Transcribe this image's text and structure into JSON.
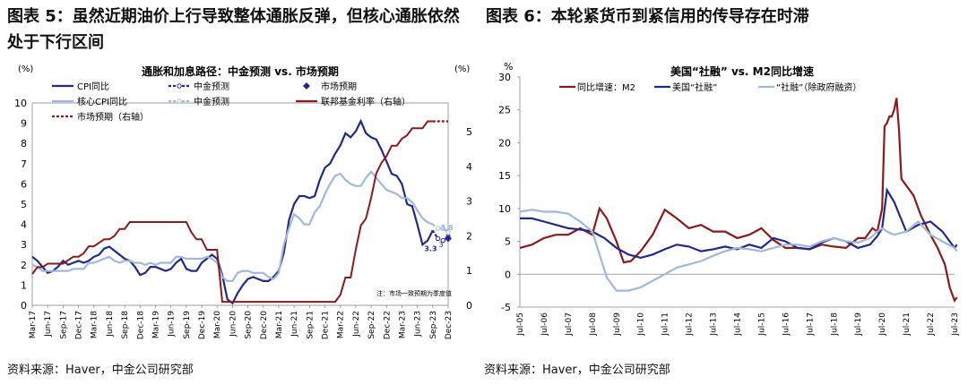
{
  "left": {
    "figure_title": "图表 5：虽然近期油价上行导致整体通胀反弹，但核心通胀依然处于下行区间",
    "source": "资料来源：Haver，中金公司研究部"
  },
  "right": {
    "figure_title": "图表 6：本轮紧货币到紧信用的传导存在时滞",
    "source": "资料来源：Haver，中金公司研究部"
  },
  "chart_data": [
    {
      "type": "line",
      "title": "通胀和加息路径：中金预测 vs. 市场预期",
      "ylabel_left": "(%)",
      "ylabel_right": "(%)",
      "ylim_left": [
        0,
        10
      ],
      "ylim_right": [
        0,
        5.83
      ],
      "x_tick_labels": [
        "Mar-17",
        "Jun-17",
        "Sep-17",
        "Dec-17",
        "Mar-18",
        "Jun-18",
        "Sep-18",
        "Dec-18",
        "Mar-19",
        "Jun-19",
        "Sep-19",
        "Dec-19",
        "Mar-20",
        "Jun-20",
        "Sep-20",
        "Dec-20",
        "Mar-21",
        "Jun-21",
        "Sep-21",
        "Dec-21",
        "Mar-22",
        "Jun-22",
        "Sep-22",
        "Dec-22",
        "Mar-23",
        "Jun-23",
        "Sep-23",
        "Dec-23"
      ],
      "y_ticks_left": [
        0,
        1,
        2,
        3,
        4,
        5,
        6,
        7,
        8,
        9,
        10
      ],
      "y_ticks_right": [
        0,
        1,
        2,
        3,
        4,
        5
      ],
      "note": "注：市场一致预期为季度值",
      "data_labels": [
        {
          "text": "3.8",
          "series": "核心CPI同比 · 中金预测",
          "value": 3.8
        },
        {
          "text": "3.3",
          "series": "CPI同比 · 中金预测",
          "value": 3.3
        },
        {
          "text": "3",
          "series": "核心CPI同比 · 中金预测",
          "value": 3.0
        }
      ],
      "legend": [
        {
          "name": "CPI同比",
          "color": "#1f2a8c",
          "style": "solid"
        },
        {
          "name": "中金预测",
          "color": "#1f2a8c",
          "style": "dashed-marker"
        },
        {
          "name": "市场预期",
          "color": "#1f2a8c",
          "style": "diamond"
        },
        {
          "name": "核心CPI同比",
          "color": "#9fb8dc",
          "style": "solid"
        },
        {
          "name": "中金预测",
          "color": "#9fb8dc",
          "style": "dashed-marker"
        },
        {
          "name": "联邦基金利率（右轴）",
          "color": "#8b1a1a",
          "style": "solid"
        },
        {
          "name": "市场预期（右轴）",
          "color": "#8b1a1a",
          "style": "dashed"
        }
      ],
      "series": [
        {
          "name": "CPI同比",
          "axis": "left",
          "color": "#1f2a8c",
          "x": [
            0,
            1,
            2,
            3,
            4,
            5,
            6,
            7,
            8,
            9,
            10,
            11,
            12,
            13,
            14,
            15,
            16,
            17,
            18,
            19,
            20,
            21,
            22,
            23,
            24,
            25,
            26,
            27,
            28,
            29,
            30,
            31,
            32,
            33,
            34,
            35,
            36,
            37,
            38,
            39,
            40,
            41,
            42,
            43,
            44,
            45,
            46,
            47,
            48,
            49,
            50,
            51,
            52,
            53,
            54,
            55,
            56,
            57,
            58,
            59,
            60,
            61,
            62,
            63,
            64,
            65,
            66,
            67,
            68,
            69,
            70,
            71,
            72,
            73,
            74,
            75,
            76,
            77,
            78
          ],
          "y": [
            2.4,
            2.2,
            1.9,
            1.6,
            1.7,
            1.9,
            2.2,
            2.0,
            2.1,
            2.2,
            2.1,
            2.2,
            2.4,
            2.5,
            2.8,
            2.9,
            2.7,
            2.5,
            2.3,
            2.2,
            1.9,
            1.5,
            1.6,
            1.9,
            1.9,
            1.8,
            1.7,
            1.8,
            2.1,
            2.3,
            1.8,
            1.7,
            1.7,
            2.1,
            2.3,
            2.5,
            2.3,
            1.5,
            0.3,
            0.1,
            0.6,
            1.0,
            1.3,
            1.4,
            1.3,
            1.2,
            1.2,
            1.4,
            1.7,
            2.6,
            4.2,
            5.0,
            5.4,
            5.4,
            5.3,
            5.4,
            6.2,
            6.8,
            7.0,
            7.5,
            7.9,
            8.5,
            8.3,
            8.6,
            9.1,
            8.5,
            8.3,
            8.2,
            7.7,
            7.1,
            6.5,
            6.4,
            6.0,
            5.0,
            4.9,
            4.0,
            3.0,
            3.2,
            3.7
          ]
        },
        {
          "name": "CPI同比 · 中金预测",
          "axis": "left",
          "color": "#1f2a8c",
          "dashed": true,
          "x": [
            78,
            79,
            80,
            81
          ],
          "y": [
            3.7,
            3.3,
            3.2,
            3.4
          ]
        },
        {
          "name": "CPI同比 · 市场预期",
          "axis": "left",
          "color": "#1f2a8c",
          "marker": "diamond",
          "x": [
            81
          ],
          "y": [
            3.3
          ]
        },
        {
          "name": "核心CPI同比",
          "axis": "left",
          "color": "#9fb8dc",
          "x": [
            0,
            1,
            2,
            3,
            4,
            5,
            6,
            7,
            8,
            9,
            10,
            11,
            12,
            13,
            14,
            15,
            16,
            17,
            18,
            19,
            20,
            21,
            22,
            23,
            24,
            25,
            26,
            27,
            28,
            29,
            30,
            31,
            32,
            33,
            34,
            35,
            36,
            37,
            38,
            39,
            40,
            41,
            42,
            43,
            44,
            45,
            46,
            47,
            48,
            49,
            50,
            51,
            52,
            53,
            54,
            55,
            56,
            57,
            58,
            59,
            60,
            61,
            62,
            63,
            64,
            65,
            66,
            67,
            68,
            69,
            70,
            71,
            72,
            73,
            74,
            75,
            76,
            77,
            78
          ],
          "y": [
            2.0,
            1.9,
            1.7,
            1.7,
            1.7,
            1.7,
            1.7,
            1.7,
            1.8,
            1.8,
            1.8,
            2.1,
            2.1,
            2.2,
            2.3,
            2.4,
            2.2,
            2.1,
            2.2,
            2.2,
            2.1,
            2.1,
            2.0,
            2.1,
            2.0,
            2.1,
            2.1,
            2.1,
            2.4,
            2.4,
            2.3,
            2.3,
            2.3,
            2.3,
            2.4,
            2.3,
            2.1,
            1.4,
            1.2,
            1.2,
            1.6,
            1.7,
            1.7,
            1.6,
            1.6,
            1.6,
            1.4,
            1.3,
            1.6,
            3.0,
            3.8,
            4.5,
            4.3,
            4.0,
            4.0,
            4.6,
            4.9,
            5.5,
            6.0,
            6.4,
            6.5,
            6.2,
            6.0,
            5.9,
            5.9,
            6.3,
            6.6,
            6.3,
            6.0,
            5.7,
            5.6,
            5.5,
            5.3,
            5.3,
            5.1,
            4.7,
            4.3,
            4.1,
            4.0
          ]
        },
        {
          "name": "核心CPI同比 · 中金预测",
          "axis": "left",
          "color": "#9fb8dc",
          "dashed": true,
          "x": [
            78,
            79,
            80,
            81
          ],
          "y": [
            4.0,
            3.8,
            3.8,
            3.6
          ]
        },
        {
          "name": "联邦基金利率（右轴）",
          "axis": "right",
          "color": "#8b1a1a",
          "x": [
            0,
            1,
            2,
            3,
            4,
            5,
            6,
            7,
            8,
            9,
            10,
            11,
            12,
            13,
            14,
            15,
            16,
            17,
            18,
            19,
            20,
            21,
            22,
            23,
            24,
            25,
            26,
            27,
            28,
            29,
            30,
            31,
            32,
            33,
            34,
            35,
            36,
            37,
            38,
            39,
            40,
            41,
            42,
            43,
            44,
            45,
            46,
            47,
            48,
            49,
            50,
            51,
            52,
            53,
            54,
            55,
            56,
            57,
            58,
            59,
            60,
            61,
            62,
            63,
            64,
            65,
            66,
            67,
            68,
            69,
            70,
            71,
            72,
            73,
            74,
            75,
            76,
            77,
            78
          ],
          "y": [
            0.9,
            1.1,
            1.1,
            1.2,
            1.2,
            1.2,
            1.2,
            1.3,
            1.4,
            1.4,
            1.5,
            1.7,
            1.7,
            1.8,
            1.9,
            1.9,
            2.0,
            2.2,
            2.2,
            2.4,
            2.4,
            2.4,
            2.4,
            2.4,
            2.4,
            2.4,
            2.4,
            2.4,
            2.4,
            2.4,
            2.4,
            2.1,
            1.9,
            1.9,
            1.6,
            1.6,
            1.6,
            0.1,
            0.1,
            0.1,
            0.1,
            0.1,
            0.1,
            0.1,
            0.1,
            0.1,
            0.1,
            0.1,
            0.1,
            0.1,
            0.1,
            0.1,
            0.1,
            0.1,
            0.1,
            0.1,
            0.1,
            0.1,
            0.1,
            0.1,
            0.3,
            0.8,
            0.8,
            1.6,
            2.3,
            2.5,
            3.1,
            3.8,
            4.1,
            4.3,
            4.6,
            4.6,
            4.8,
            4.9,
            5.1,
            5.1,
            5.1,
            5.3,
            5.3
          ]
        },
        {
          "name": "市场预期（右轴）",
          "axis": "right",
          "color": "#8b1a1a",
          "dashed": true,
          "x": [
            78,
            79,
            80,
            81
          ],
          "y": [
            5.3,
            5.3,
            5.3,
            5.3
          ]
        }
      ],
      "x_count": 82
    },
    {
      "type": "line",
      "title": "美国“社融” vs. M2同比增速",
      "ylabel": "%",
      "ylim": [
        -5,
        30
      ],
      "y_ticks": [
        -5,
        0,
        5,
        10,
        15,
        20,
        25,
        30
      ],
      "x_tick_labels": [
        "Jul-05",
        "Jul-06",
        "Jul-07",
        "Jul-08",
        "Jul-09",
        "Jul-10",
        "Jul-11",
        "Jul-12",
        "Jul-13",
        "Jul-14",
        "Jul-15",
        "Jul-16",
        "Jul-17",
        "Jul-18",
        "Jul-19",
        "Jul-20",
        "Jul-21",
        "Jul-22",
        "Jul-23"
      ],
      "legend": [
        {
          "name": "同比增速：M2",
          "color": "#8b1a1a"
        },
        {
          "name": "美国“社融”",
          "color": "#1f2a8c"
        },
        {
          "name": "“社融”（除政府融资）",
          "color": "#9fb8dc"
        }
      ],
      "series": [
        {
          "name": "同比增速：M2",
          "color": "#8b1a1a",
          "x": [
            0,
            0.5,
            1,
            1.5,
            2,
            2.5,
            3,
            3.3,
            3.6,
            4,
            4.3,
            4.6,
            5,
            5.5,
            6,
            6.5,
            7,
            7.5,
            8,
            8.5,
            9,
            9.5,
            10,
            10.5,
            11,
            11.5,
            12,
            12.5,
            13,
            13.5,
            14,
            14.3,
            14.6,
            14.8,
            15,
            15.1,
            15.2,
            15.3,
            15.4,
            15.5,
            15.6,
            15.7,
            15.8,
            16,
            16.3,
            16.6,
            17,
            17.3,
            17.6,
            17.8,
            18,
            18.1
          ],
          "y": [
            4.0,
            4.5,
            5.5,
            6.0,
            6.0,
            7.0,
            6.0,
            10.0,
            8.5,
            5.0,
            1.8,
            2.0,
            3.5,
            6.0,
            9.8,
            8.5,
            7.0,
            7.5,
            6.5,
            6.5,
            5.5,
            6.0,
            7.0,
            5.2,
            4.0,
            4.0,
            3.8,
            4.5,
            4.2,
            4.0,
            5.5,
            5.5,
            7.0,
            6.5,
            10.0,
            22.5,
            23.0,
            24.0,
            24.0,
            25.0,
            26.8,
            22.0,
            14.5,
            13.5,
            12.0,
            9.0,
            6.0,
            4.0,
            1.5,
            -2.0,
            -4.0,
            -3.5
          ]
        },
        {
          "name": "美国“社融”",
          "color": "#1f2a8c",
          "x": [
            0,
            0.5,
            1,
            1.5,
            2,
            2.5,
            3,
            3.5,
            4,
            4.5,
            5,
            5.5,
            6,
            6.5,
            7,
            7.5,
            8,
            8.5,
            9,
            9.5,
            10,
            10.5,
            11,
            11.5,
            12,
            12.5,
            13,
            13.5,
            14,
            14.5,
            14.8,
            15,
            15.2,
            15.5,
            16,
            16.5,
            17,
            17.5,
            18,
            18.1
          ],
          "y": [
            8.5,
            8.5,
            8.0,
            7.5,
            7.0,
            6.8,
            6.5,
            5.5,
            4.0,
            3.0,
            2.5,
            3.0,
            3.8,
            4.5,
            4.2,
            3.5,
            3.8,
            4.2,
            3.8,
            4.5,
            4.0,
            5.5,
            5.0,
            4.0,
            3.8,
            4.8,
            5.5,
            5.0,
            4.0,
            4.5,
            5.8,
            7.0,
            12.8,
            11.0,
            6.5,
            7.5,
            8.0,
            6.5,
            4.0,
            4.5
          ]
        },
        {
          "name": "“社融”（除政府融资）",
          "color": "#9fb8dc",
          "x": [
            0,
            0.5,
            1,
            1.5,
            2,
            2.5,
            3,
            3.3,
            3.6,
            4,
            4.5,
            5,
            5.5,
            6,
            6.5,
            7,
            7.5,
            8,
            8.5,
            9,
            9.5,
            10,
            10.5,
            11,
            11.5,
            12,
            12.5,
            13,
            13.5,
            14,
            14.5,
            14.8,
            15,
            15.2,
            15.5,
            16,
            16.5,
            17,
            17.5,
            18,
            18.1
          ],
          "y": [
            9.5,
            9.8,
            9.5,
            9.5,
            9.2,
            8.0,
            6.5,
            3.0,
            -0.5,
            -2.5,
            -2.5,
            -2.0,
            -1.0,
            0.0,
            1.0,
            1.5,
            2.0,
            2.8,
            3.5,
            4.0,
            3.8,
            3.5,
            4.0,
            4.5,
            4.5,
            4.2,
            5.0,
            5.5,
            5.0,
            4.8,
            5.5,
            6.5,
            7.0,
            6.5,
            6.0,
            6.5,
            8.0,
            6.0,
            5.0,
            4.0,
            3.5
          ]
        }
      ],
      "x_count": 19
    }
  ]
}
